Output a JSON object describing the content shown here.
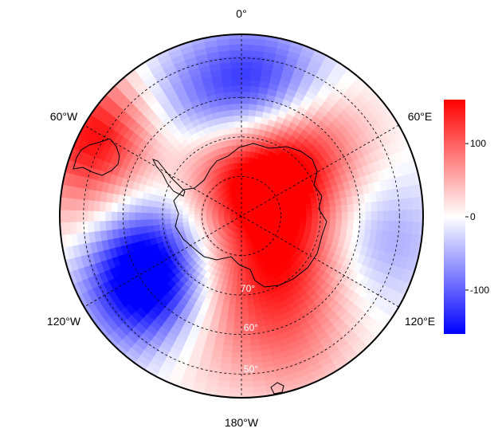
{
  "map": {
    "projection": "south-polar-stereographic",
    "longitude_labels": [
      "0°",
      "60°E",
      "120°E",
      "180°W",
      "120°W",
      "60°W"
    ],
    "latitude_labels": [
      "70°",
      "60°",
      "50°"
    ],
    "grid": true
  },
  "colorbar": {
    "min": -160,
    "max": 160,
    "ticks": [
      "100",
      "0",
      "-100"
    ],
    "tick_values": [
      100,
      0,
      -100
    ],
    "colors": {
      "low": "#0000ff",
      "mid": "#ffffff",
      "high": "#ff0000"
    }
  },
  "field_anomalies": [
    {
      "lon": 0,
      "colat": 34,
      "value": -90
    },
    {
      "lon": 20,
      "colat": 34,
      "value": -70
    },
    {
      "lon": 330,
      "colat": 32,
      "value": -50
    },
    {
      "lon": 40,
      "colat": 28,
      "value": 80
    },
    {
      "lon": 100,
      "colat": 36,
      "value": -60
    },
    {
      "lon": 160,
      "colat": 36,
      "value": 60
    },
    {
      "lon": 200,
      "colat": 32,
      "value": 40
    },
    {
      "lon": 230,
      "colat": 30,
      "value": -160
    },
    {
      "lon": 255,
      "colat": 28,
      "value": -110
    },
    {
      "lon": 270,
      "colat": 38,
      "value": 60
    },
    {
      "lon": 300,
      "colat": 42,
      "value": 150
    },
    {
      "lon": 0,
      "colat": 10,
      "value": 120
    },
    {
      "lon": 60,
      "colat": 14,
      "value": 100
    },
    {
      "lon": 135,
      "colat": 18,
      "value": 90
    },
    {
      "lon": 180,
      "colat": 16,
      "value": 60
    }
  ]
}
